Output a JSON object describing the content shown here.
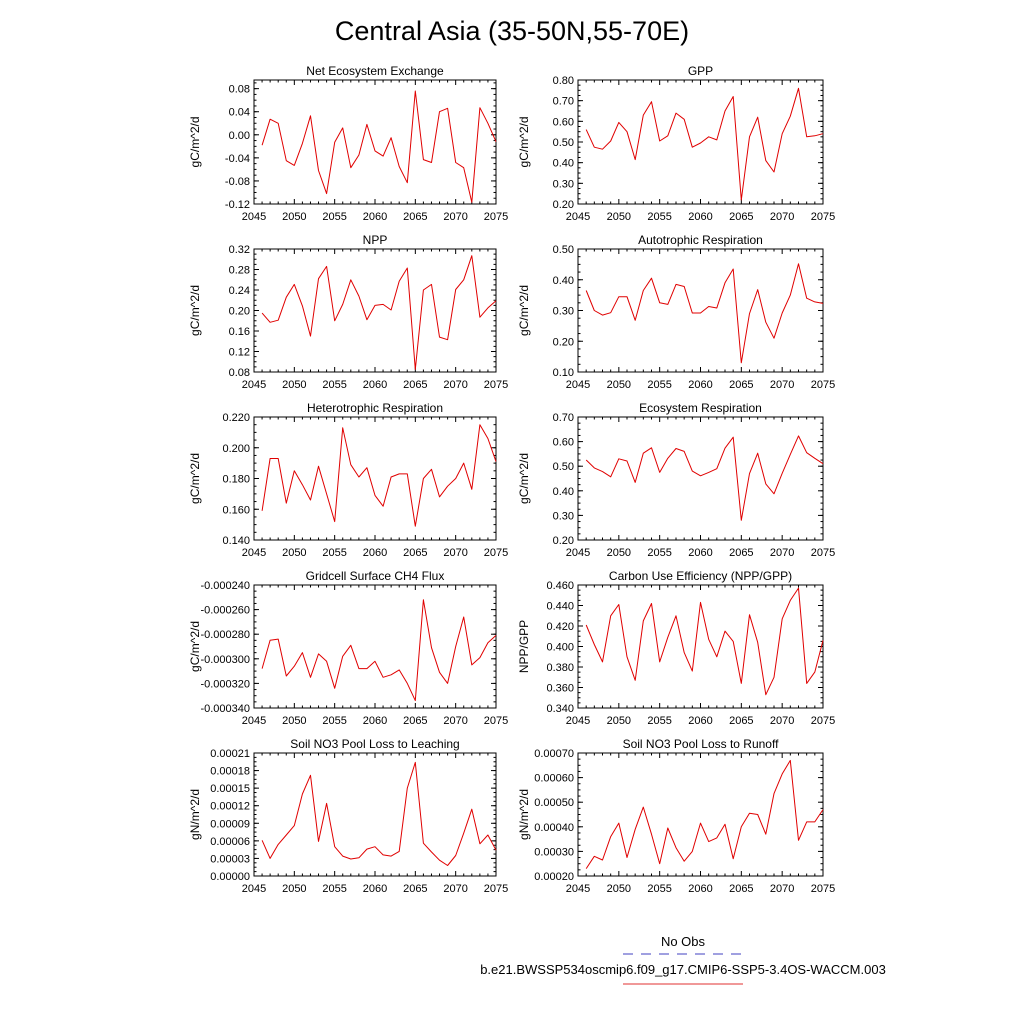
{
  "figure": {
    "title": "Central Asia (35-50N,55-70E)"
  },
  "legend": {
    "entries": [
      {
        "name": "No Obs",
        "color": "#4040c0",
        "style": "dashed"
      },
      {
        "name": "b.e21.BWSSP534oscmip6.f09_g17.CMIP6-SSP5-3.4OS-WACCM.003",
        "color": "#e03030",
        "style": "solid"
      }
    ]
  },
  "colors": {
    "series": "#e00000",
    "axis": "#000000"
  },
  "chart_data": [
    {
      "type": "line",
      "title": "Net Ecosystem Exchange",
      "ylabel": "gC/m^2/d",
      "xlim": [
        2045,
        2075
      ],
      "xticks": [
        "2045",
        "2050",
        "2055",
        "2060",
        "2065",
        "2070",
        "2075"
      ],
      "ylim": [
        -0.12,
        0.095
      ],
      "yticks": [
        "-0.12",
        "-0.08",
        "-0.04",
        "0.00",
        "0.04",
        "0.08"
      ],
      "x": [
        2046,
        2047,
        2048,
        2049,
        2050,
        2051,
        2052,
        2053,
        2054,
        2055,
        2056,
        2057,
        2058,
        2059,
        2060,
        2061,
        2062,
        2063,
        2064,
        2065,
        2066,
        2067,
        2068,
        2069,
        2070,
        2071,
        2072,
        2073,
        2074,
        2075
      ],
      "series": [
        {
          "values": [
            -0.018,
            0.027,
            0.02,
            -0.045,
            -0.053,
            -0.015,
            0.033,
            -0.062,
            -0.102,
            -0.013,
            0.012,
            -0.057,
            -0.035,
            0.018,
            -0.028,
            -0.037,
            -0.005,
            -0.055,
            -0.083,
            0.076,
            -0.043,
            -0.048,
            0.04,
            0.046,
            -0.048,
            -0.057,
            -0.117,
            0.047,
            0.02,
            -0.012
          ]
        }
      ]
    },
    {
      "type": "line",
      "title": "GPP",
      "ylabel": "gC/m^2/d",
      "xlim": [
        2045,
        2075
      ],
      "xticks": [
        "2045",
        "2050",
        "2055",
        "2060",
        "2065",
        "2070",
        "2075"
      ],
      "ylim": [
        0.2,
        0.8
      ],
      "yticks": [
        "0.20",
        "0.30",
        "0.40",
        "0.50",
        "0.60",
        "0.70",
        "0.80"
      ],
      "x": [
        2046,
        2047,
        2048,
        2049,
        2050,
        2051,
        2052,
        2053,
        2054,
        2055,
        2056,
        2057,
        2058,
        2059,
        2060,
        2061,
        2062,
        2063,
        2064,
        2065,
        2066,
        2067,
        2068,
        2069,
        2070,
        2071,
        2072,
        2073,
        2074,
        2075
      ],
      "series": [
        {
          "values": [
            0.56,
            0.475,
            0.465,
            0.505,
            0.595,
            0.55,
            0.415,
            0.63,
            0.695,
            0.505,
            0.53,
            0.64,
            0.61,
            0.475,
            0.495,
            0.525,
            0.51,
            0.65,
            0.72,
            0.22,
            0.525,
            0.62,
            0.41,
            0.355,
            0.54,
            0.625,
            0.76,
            0.525,
            0.53,
            0.54
          ]
        }
      ]
    },
    {
      "type": "line",
      "title": "NPP",
      "ylabel": "gC/m^2/d",
      "xlim": [
        2045,
        2075
      ],
      "xticks": [
        "2045",
        "2050",
        "2055",
        "2060",
        "2065",
        "2070",
        "2075"
      ],
      "ylim": [
        0.08,
        0.32
      ],
      "yticks": [
        "0.08",
        "0.12",
        "0.16",
        "0.20",
        "0.24",
        "0.28",
        "0.32"
      ],
      "x": [
        2046,
        2047,
        2048,
        2049,
        2050,
        2051,
        2052,
        2053,
        2054,
        2055,
        2056,
        2057,
        2058,
        2059,
        2060,
        2061,
        2062,
        2063,
        2064,
        2065,
        2066,
        2067,
        2068,
        2069,
        2070,
        2071,
        2072,
        2073,
        2074,
        2075
      ],
      "series": [
        {
          "values": [
            0.195,
            0.177,
            0.181,
            0.226,
            0.251,
            0.209,
            0.15,
            0.262,
            0.286,
            0.18,
            0.212,
            0.26,
            0.228,
            0.182,
            0.21,
            0.212,
            0.201,
            0.257,
            0.283,
            0.085,
            0.24,
            0.251,
            0.148,
            0.143,
            0.241,
            0.26,
            0.307,
            0.187,
            0.205,
            0.219
          ]
        }
      ]
    },
    {
      "type": "line",
      "title": "Autotrophic Respiration",
      "ylabel": "gC/m^2/d",
      "xlim": [
        2045,
        2075
      ],
      "xticks": [
        "2045",
        "2050",
        "2055",
        "2060",
        "2065",
        "2070",
        "2075"
      ],
      "ylim": [
        0.1,
        0.5
      ],
      "yticks": [
        "0.10",
        "0.20",
        "0.30",
        "0.40",
        "0.50"
      ],
      "x": [
        2046,
        2047,
        2048,
        2049,
        2050,
        2051,
        2052,
        2053,
        2054,
        2055,
        2056,
        2057,
        2058,
        2059,
        2060,
        2061,
        2062,
        2063,
        2064,
        2065,
        2066,
        2067,
        2068,
        2069,
        2070,
        2071,
        2072,
        2073,
        2074,
        2075
      ],
      "series": [
        {
          "values": [
            0.365,
            0.3,
            0.285,
            0.293,
            0.345,
            0.345,
            0.268,
            0.365,
            0.405,
            0.325,
            0.32,
            0.385,
            0.378,
            0.292,
            0.292,
            0.313,
            0.308,
            0.39,
            0.435,
            0.13,
            0.29,
            0.368,
            0.262,
            0.21,
            0.292,
            0.35,
            0.452,
            0.34,
            0.328,
            0.323
          ]
        }
      ]
    },
    {
      "type": "line",
      "title": "Heterotrophic Respiration",
      "ylabel": "gC/m^2/d",
      "xlim": [
        2045,
        2075
      ],
      "xticks": [
        "2045",
        "2050",
        "2055",
        "2060",
        "2065",
        "2070",
        "2075"
      ],
      "ylim": [
        0.14,
        0.22
      ],
      "yticks": [
        "0.140",
        "0.160",
        "0.180",
        "0.200",
        "0.220"
      ],
      "x": [
        2046,
        2047,
        2048,
        2049,
        2050,
        2051,
        2052,
        2053,
        2054,
        2055,
        2056,
        2057,
        2058,
        2059,
        2060,
        2061,
        2062,
        2063,
        2064,
        2065,
        2066,
        2067,
        2068,
        2069,
        2070,
        2071,
        2072,
        2073,
        2074,
        2075
      ],
      "series": [
        {
          "values": [
            0.159,
            0.193,
            0.193,
            0.164,
            0.185,
            0.176,
            0.166,
            0.188,
            0.17,
            0.152,
            0.213,
            0.189,
            0.181,
            0.187,
            0.169,
            0.162,
            0.181,
            0.183,
            0.183,
            0.149,
            0.18,
            0.186,
            0.168,
            0.175,
            0.18,
            0.19,
            0.173,
            0.215,
            0.206,
            0.191
          ]
        }
      ]
    },
    {
      "type": "line",
      "title": "Ecosystem Respiration",
      "ylabel": "gC/m^2/d",
      "xlim": [
        2045,
        2075
      ],
      "xticks": [
        "2045",
        "2050",
        "2055",
        "2060",
        "2065",
        "2070",
        "2075"
      ],
      "ylim": [
        0.2,
        0.7
      ],
      "yticks": [
        "0.20",
        "0.30",
        "0.40",
        "0.50",
        "0.60",
        "0.70"
      ],
      "x": [
        2046,
        2047,
        2048,
        2049,
        2050,
        2051,
        2052,
        2053,
        2054,
        2055,
        2056,
        2057,
        2058,
        2059,
        2060,
        2061,
        2062,
        2063,
        2064,
        2065,
        2066,
        2067,
        2068,
        2069,
        2070,
        2071,
        2072,
        2073,
        2074,
        2075
      ],
      "series": [
        {
          "values": [
            0.525,
            0.493,
            0.478,
            0.457,
            0.53,
            0.521,
            0.434,
            0.553,
            0.575,
            0.475,
            0.532,
            0.572,
            0.56,
            0.48,
            0.461,
            0.475,
            0.49,
            0.573,
            0.618,
            0.28,
            0.47,
            0.553,
            0.428,
            0.388,
            0.471,
            0.548,
            0.623,
            0.555,
            0.532,
            0.51
          ]
        }
      ]
    },
    {
      "type": "line",
      "title": "Gridcell Surface CH4 Flux",
      "ylabel": "gC/m^2/d",
      "xlim": [
        2045,
        2075
      ],
      "xticks": [
        "2045",
        "2050",
        "2055",
        "2060",
        "2065",
        "2070",
        "2075"
      ],
      "ylim": [
        -0.00034,
        -0.00024
      ],
      "yticks": [
        "-0.000340",
        "-0.000320",
        "-0.000300",
        "-0.000280",
        "-0.000260",
        "-0.000240"
      ],
      "x": [
        2046,
        2047,
        2048,
        2049,
        2050,
        2051,
        2052,
        2053,
        2054,
        2055,
        2056,
        2057,
        2058,
        2059,
        2060,
        2061,
        2062,
        2063,
        2064,
        2065,
        2066,
        2067,
        2068,
        2069,
        2070,
        2071,
        2072,
        2073,
        2074,
        2075
      ],
      "series": [
        {
          "values": [
            -0.000308,
            -0.000285,
            -0.000284,
            -0.000314,
            -0.000306,
            -0.000295,
            -0.000315,
            -0.000296,
            -0.000302,
            -0.000324,
            -0.000298,
            -0.000289,
            -0.000308,
            -0.000308,
            -0.000302,
            -0.000315,
            -0.000313,
            -0.000309,
            -0.00032,
            -0.000334,
            -0.000252,
            -0.000291,
            -0.000311,
            -0.00032,
            -0.00029,
            -0.000266,
            -0.000305,
            -0.000299,
            -0.000287,
            -0.000281
          ]
        }
      ]
    },
    {
      "type": "line",
      "title": "Carbon Use Efficiency (NPP/GPP)",
      "ylabel": "NPP/GPP",
      "xlim": [
        2045,
        2075
      ],
      "xticks": [
        "2045",
        "2050",
        "2055",
        "2060",
        "2065",
        "2070",
        "2075"
      ],
      "ylim": [
        0.34,
        0.46
      ],
      "yticks": [
        "0.340",
        "0.360",
        "0.380",
        "0.400",
        "0.420",
        "0.440",
        "0.460"
      ],
      "x": [
        2046,
        2047,
        2048,
        2049,
        2050,
        2051,
        2052,
        2053,
        2054,
        2055,
        2056,
        2057,
        2058,
        2059,
        2060,
        2061,
        2062,
        2063,
        2064,
        2065,
        2066,
        2067,
        2068,
        2069,
        2070,
        2071,
        2072,
        2073,
        2074,
        2075
      ],
      "series": [
        {
          "values": [
            0.421,
            0.402,
            0.385,
            0.43,
            0.441,
            0.39,
            0.367,
            0.425,
            0.442,
            0.385,
            0.409,
            0.43,
            0.394,
            0.376,
            0.443,
            0.407,
            0.39,
            0.415,
            0.405,
            0.364,
            0.431,
            0.404,
            0.353,
            0.37,
            0.427,
            0.445,
            0.457,
            0.364,
            0.375,
            0.406
          ]
        }
      ]
    },
    {
      "type": "line",
      "title": "Soil NO3 Pool Loss to Leaching",
      "ylabel": "gN/m^2/d",
      "xlim": [
        2045,
        2075
      ],
      "xticks": [
        "2045",
        "2050",
        "2055",
        "2060",
        "2065",
        "2070",
        "2075"
      ],
      "ylim": [
        0.0,
        0.00021
      ],
      "yticks": [
        "0.00000",
        "0.00003",
        "0.00006",
        "0.00009",
        "0.00012",
        "0.00015",
        "0.00018",
        "0.00021"
      ],
      "x": [
        2046,
        2047,
        2048,
        2049,
        2050,
        2051,
        2052,
        2053,
        2054,
        2055,
        2056,
        2057,
        2058,
        2059,
        2060,
        2061,
        2062,
        2063,
        2064,
        2065,
        2066,
        2067,
        2068,
        2069,
        2070,
        2071,
        2072,
        2073,
        2074,
        2075
      ],
      "series": [
        {
          "values": [
            6.1e-05,
            3e-05,
            5.4e-05,
            7e-05,
            8.6e-05,
            0.00014,
            0.000172,
            5.9e-05,
            0.000124,
            5e-05,
            3.4e-05,
            2.9e-05,
            3.1e-05,
            4.6e-05,
            5e-05,
            3.6e-05,
            3.4e-05,
            4.2e-05,
            0.00015,
            0.000194,
            5.6e-05,
            4.1e-05,
            2.7e-05,
            1.8e-05,
            3.5e-05,
            7.3e-05,
            0.000114,
            5.5e-05,
            7e-05,
            4.4e-05
          ]
        }
      ]
    },
    {
      "type": "line",
      "title": "Soil NO3 Pool Loss to Runoff",
      "ylabel": "gN/m^2/d",
      "xlim": [
        2045,
        2075
      ],
      "xticks": [
        "2045",
        "2050",
        "2055",
        "2060",
        "2065",
        "2070",
        "2075"
      ],
      "ylim": [
        0.0002,
        0.0007
      ],
      "yticks": [
        "0.00020",
        "0.00030",
        "0.00040",
        "0.00050",
        "0.00060",
        "0.00070"
      ],
      "x": [
        2046,
        2047,
        2048,
        2049,
        2050,
        2051,
        2052,
        2053,
        2054,
        2055,
        2056,
        2057,
        2058,
        2059,
        2060,
        2061,
        2062,
        2063,
        2064,
        2065,
        2066,
        2067,
        2068,
        2069,
        2070,
        2071,
        2072,
        2073,
        2074,
        2075
      ],
      "series": [
        {
          "values": [
            0.00023,
            0.00028,
            0.000265,
            0.00036,
            0.000415,
            0.000275,
            0.00039,
            0.00048,
            0.00037,
            0.00025,
            0.000395,
            0.000315,
            0.00026,
            0.0003,
            0.000415,
            0.00034,
            0.000355,
            0.00041,
            0.00027,
            0.0004,
            0.000455,
            0.00045,
            0.00037,
            0.000535,
            0.000615,
            0.00067,
            0.000345,
            0.00042,
            0.00042,
            0.00047
          ]
        }
      ]
    }
  ]
}
